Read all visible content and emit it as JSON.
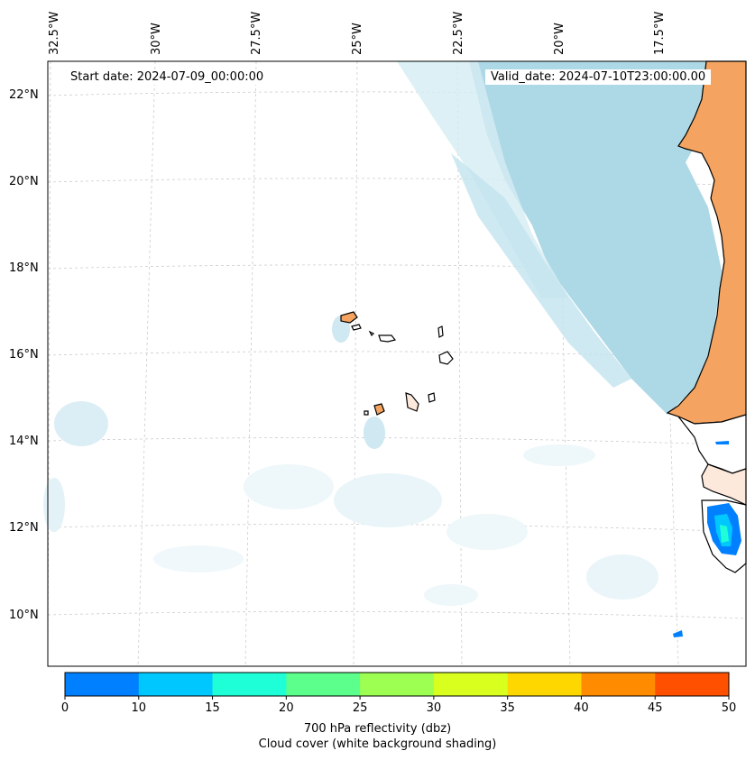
{
  "map": {
    "start_date": "Start date: 2024-07-09_00:00:00",
    "valid_date": "Valid_date: 2024-07-10T23:00:00.00",
    "longitude_labels": [
      "32.5°W",
      "30°W",
      "27.5°W",
      "25°W",
      "22.5°W",
      "20°W",
      "17.5°W"
    ],
    "latitude_labels": [
      "22°N",
      "20°N",
      "18°N",
      "16°N",
      "14°N",
      "12°N",
      "10°N"
    ]
  },
  "colorbar": {
    "ticks": [
      "0",
      "10",
      "15",
      "20",
      "25",
      "30",
      "35",
      "40",
      "45",
      "50"
    ],
    "colors": [
      "#0080ff",
      "#00c8ff",
      "#1effd8",
      "#5cff8c",
      "#9cff52",
      "#d8ff1e",
      "#ffd700",
      "#ff8c00",
      "#ff5000"
    ],
    "label_line1": "700 hPa reflectivity (dbz)",
    "label_line2": "Cloud cover (white background shading)"
  },
  "style": {
    "land_color": "#f4a460",
    "cloud_color": "#add8e6"
  }
}
